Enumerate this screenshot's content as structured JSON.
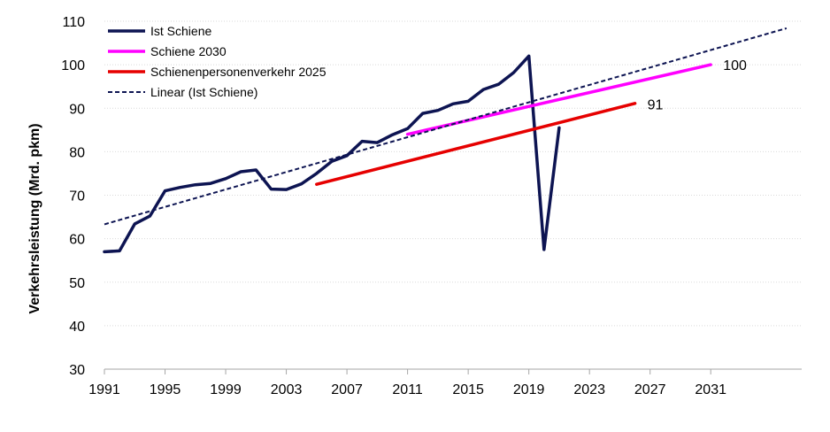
{
  "chart_data": {
    "type": "line",
    "title": "",
    "xlabel": "",
    "ylabel": "Verkehrsleistung (Mrd. pkm)",
    "xlim": [
      1991,
      2037
    ],
    "ylim": [
      30,
      110
    ],
    "x_ticks": [
      "1991",
      "1995",
      "1999",
      "2003",
      "2007",
      "2011",
      "2015",
      "2019",
      "2023",
      "2027",
      "2031"
    ],
    "y_ticks": [
      "30",
      "40",
      "50",
      "60",
      "70",
      "80",
      "90",
      "100",
      "110"
    ],
    "grid": "horizontal",
    "legend_position": "top-left",
    "series": [
      {
        "name": "Ist Schiene",
        "color": "#0d1452",
        "style": "solid",
        "x": [
          1991,
          1992,
          1993,
          1994,
          1995,
          1996,
          1997,
          1998,
          1999,
          2000,
          2001,
          2002,
          2003,
          2004,
          2005,
          2006,
          2007,
          2008,
          2009,
          2010,
          2011,
          2012,
          2013,
          2014,
          2015,
          2016,
          2017,
          2018,
          2019,
          2020,
          2021
        ],
        "y": [
          57.0,
          57.2,
          63.4,
          65.2,
          71.0,
          71.8,
          72.4,
          72.7,
          73.8,
          75.4,
          75.8,
          71.4,
          71.3,
          72.6,
          75.0,
          77.8,
          79.1,
          82.4,
          82.1,
          83.9,
          85.3,
          88.8,
          89.5,
          91.0,
          91.6,
          94.3,
          95.5,
          98.2,
          102.0,
          57.5,
          85.5
        ]
      },
      {
        "name": "Schiene 2030",
        "color": "#ff00ff",
        "style": "solid",
        "x": [
          2011,
          2031
        ],
        "y": [
          84.0,
          100.0
        ]
      },
      {
        "name": "Schienenpersonenverkehr 2025",
        "color": "#e60000",
        "style": "solid",
        "x": [
          2005,
          2026
        ],
        "y": [
          72.5,
          91.1
        ]
      },
      {
        "name": "Linear (Ist Schiene)",
        "color": "#0d1452",
        "style": "dashed",
        "x": [
          1991,
          2036
        ],
        "y": [
          63.3,
          108.4
        ]
      }
    ],
    "annotations": [
      {
        "series": "Schiene 2030",
        "x": 2031,
        "y": 100,
        "text": "100"
      },
      {
        "series": "Schienenpersonenverkehr 2025",
        "x": 2026,
        "y": 91,
        "text": "91"
      }
    ]
  }
}
